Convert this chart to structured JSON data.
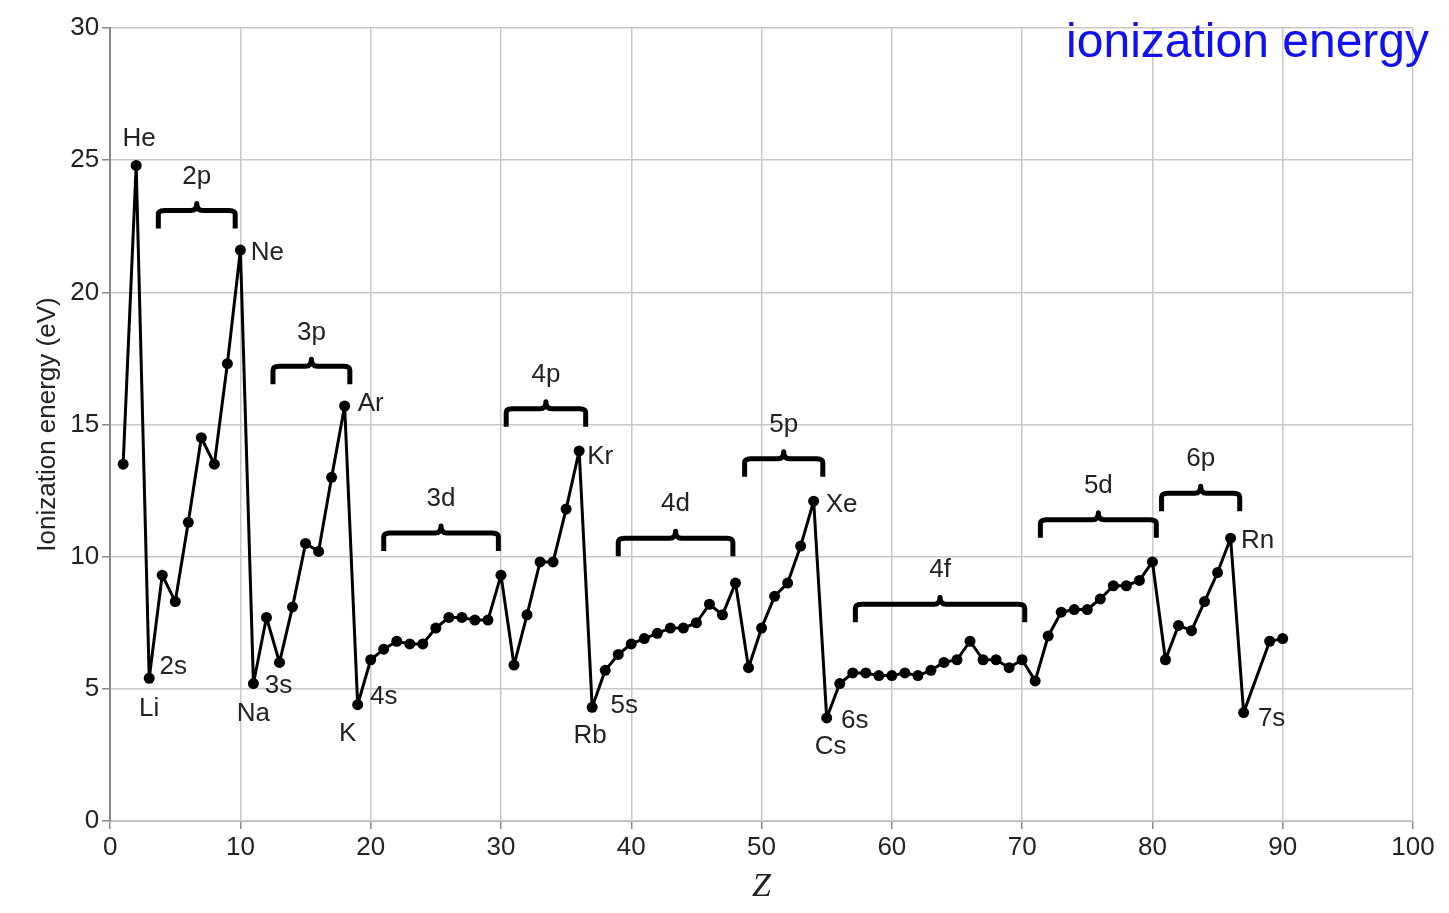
{
  "chart_data": {
    "type": "line",
    "title": "ionization energy",
    "xlabel": "Z",
    "ylabel": "Ionization energy (eV)",
    "x": [
      1,
      2,
      3,
      4,
      5,
      6,
      7,
      8,
      9,
      10,
      11,
      12,
      13,
      14,
      15,
      16,
      17,
      18,
      19,
      20,
      21,
      22,
      23,
      24,
      25,
      26,
      27,
      28,
      29,
      30,
      31,
      32,
      33,
      34,
      35,
      36,
      37,
      38,
      39,
      40,
      41,
      42,
      43,
      44,
      45,
      46,
      47,
      48,
      49,
      50,
      51,
      52,
      53,
      54,
      55,
      56,
      57,
      58,
      59,
      60,
      61,
      62,
      63,
      64,
      65,
      66,
      67,
      68,
      69,
      70,
      71,
      72,
      73,
      74,
      75,
      76,
      77,
      78,
      79,
      80,
      81,
      82,
      83,
      84,
      85,
      86,
      87,
      89,
      90
    ],
    "series": [
      {
        "color": "#000000",
        "values": [
          13.5,
          24.8,
          5.4,
          9.3,
          8.3,
          11.3,
          14.5,
          13.5,
          17.3,
          21.6,
          5.2,
          7.7,
          6.0,
          8.1,
          10.5,
          10.2,
          13.0,
          15.7,
          4.4,
          6.1,
          6.5,
          6.8,
          6.7,
          6.7,
          7.3,
          7.7,
          7.7,
          7.6,
          7.6,
          9.3,
          5.9,
          7.8,
          9.8,
          9.8,
          11.8,
          14.0,
          4.3,
          5.7,
          6.3,
          6.7,
          6.9,
          7.1,
          7.3,
          7.3,
          7.5,
          8.2,
          7.8,
          9.0,
          5.8,
          7.3,
          8.5,
          9.0,
          10.4,
          12.1,
          3.9,
          5.2,
          5.6,
          5.6,
          5.5,
          5.5,
          5.6,
          5.5,
          5.7,
          6.0,
          6.1,
          6.8,
          6.1,
          6.1,
          5.8,
          6.1,
          5.3,
          7.0,
          7.9,
          8.0,
          8.0,
          8.4,
          8.9,
          8.9,
          9.1,
          9.8,
          6.1,
          7.4,
          7.2,
          8.3,
          9.4,
          10.7,
          4.1,
          6.8,
          6.9
        ]
      }
    ],
    "xlim": [
      0,
      100
    ],
    "xticks": [
      0,
      10,
      20,
      30,
      40,
      50,
      60,
      70,
      80,
      90,
      100
    ],
    "ylim": [
      0,
      30
    ],
    "yticks": [
      0,
      5,
      10,
      15,
      20,
      25,
      30
    ],
    "grid": true,
    "legend": false,
    "marker": "circle",
    "line_style": "solid",
    "annotations": [
      {
        "text": "He",
        "x": 2,
        "y": 24.8
      },
      {
        "text": "Ne",
        "x": 10,
        "y": 21.6
      },
      {
        "text": "Ar",
        "x": 18,
        "y": 15.7
      },
      {
        "text": "Kr",
        "x": 36,
        "y": 14.0
      },
      {
        "text": "Xe",
        "x": 54,
        "y": 12.1
      },
      {
        "text": "Rn",
        "x": 86,
        "y": 10.7
      },
      {
        "text": "Li",
        "x": 3,
        "y": 5.4
      },
      {
        "text": "Na",
        "x": 11,
        "y": 5.2
      },
      {
        "text": "K",
        "x": 19,
        "y": 4.4
      },
      {
        "text": "Rb",
        "x": 37,
        "y": 4.3
      },
      {
        "text": "Cs",
        "x": 55,
        "y": 3.9
      },
      {
        "text": "2s",
        "x": 3,
        "y": 5.4
      },
      {
        "text": "3s",
        "x": 11,
        "y": 5.2
      },
      {
        "text": "4s",
        "x": 19,
        "y": 4.4
      },
      {
        "text": "5s",
        "x": 37,
        "y": 4.3
      },
      {
        "text": "6s",
        "x": 55,
        "y": 3.9
      },
      {
        "text": "7s",
        "x": 87,
        "y": 4.1
      },
      "2p",
      "3p",
      "3d",
      "4p",
      "4d",
      "5p",
      "4f",
      "5d",
      "6p"
    ]
  }
}
